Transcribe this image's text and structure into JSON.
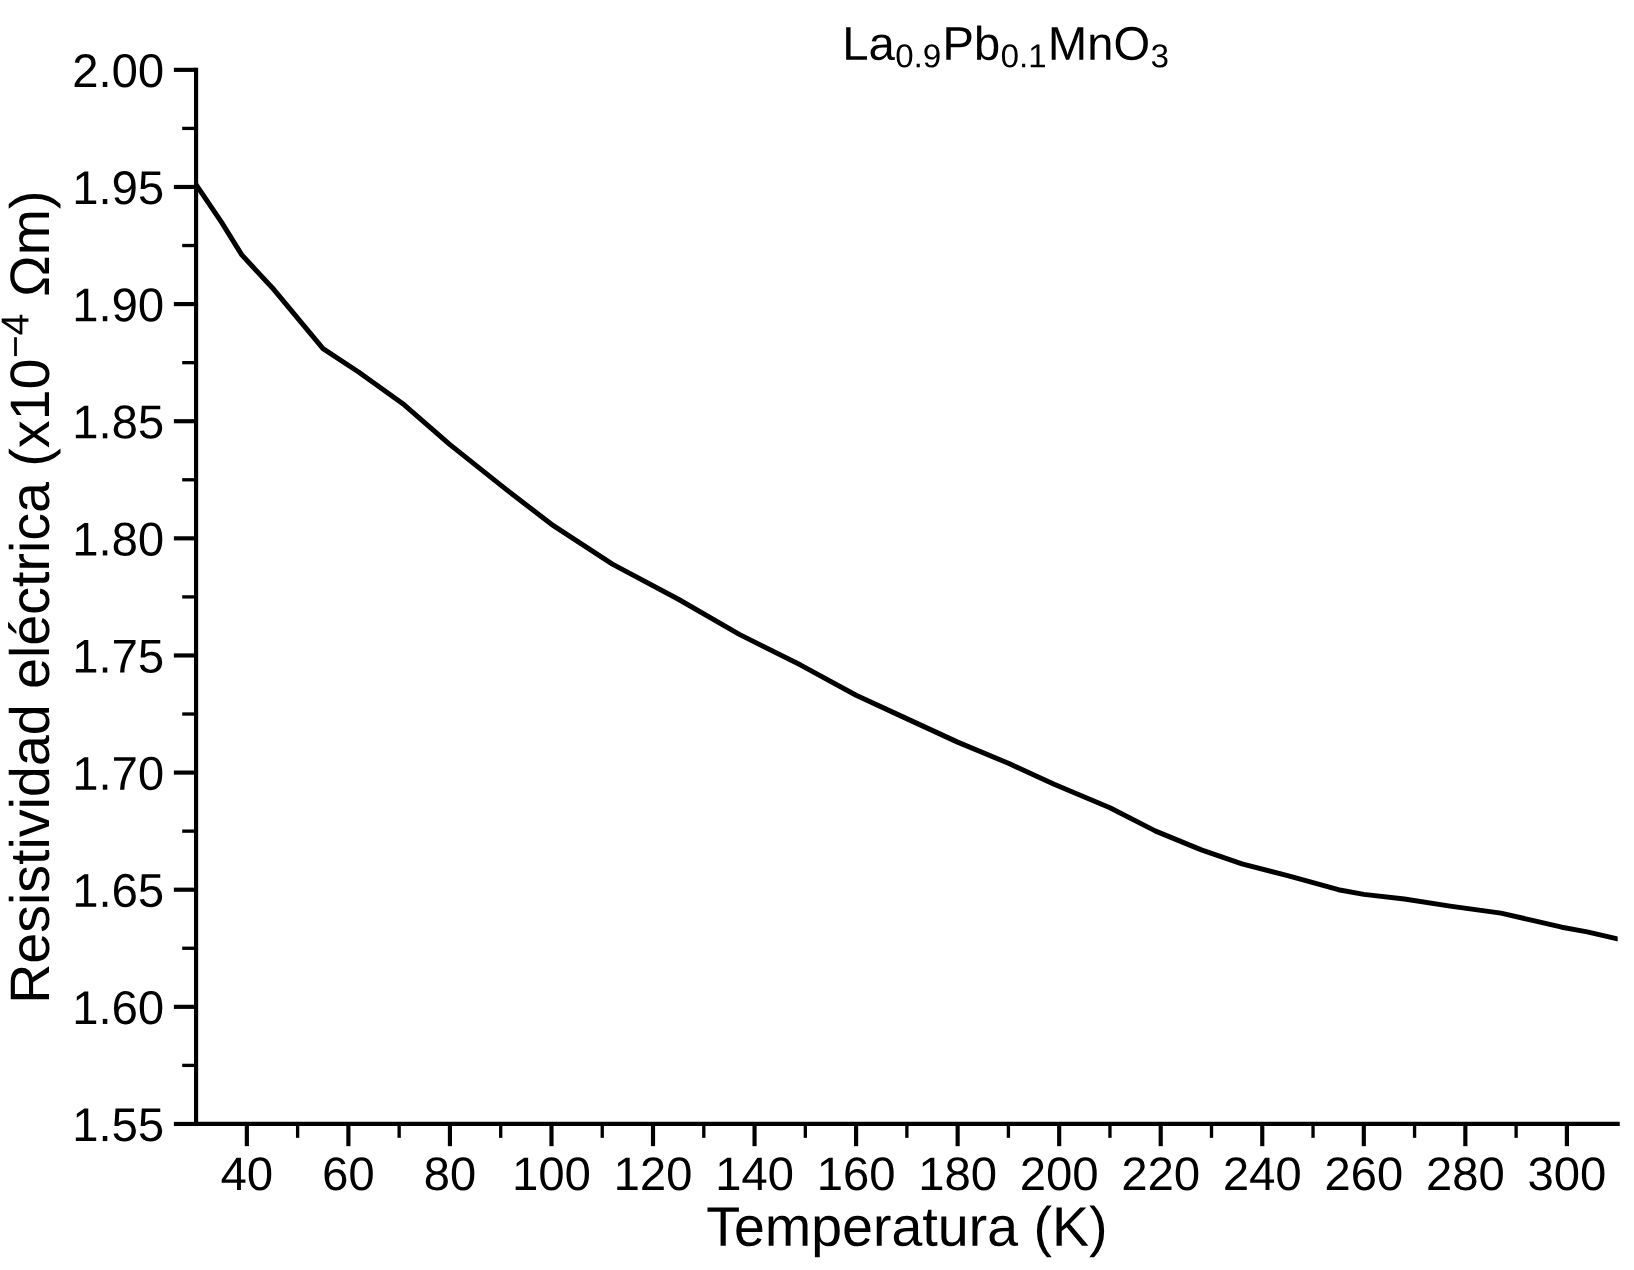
{
  "chart_data": {
    "type": "line",
    "title": "La$_{0.9}$Pb$_{0.1}$MnO$_{3}$",
    "xlabel": "Temperatura (K)",
    "ylabel": "Resistividad eléctrica (x10$^{−4}$ Ωm)",
    "series": [
      {
        "color": "#000000",
        "x": [
          30,
          35,
          39,
          45,
          55,
          62,
          71,
          80,
          91,
          100,
          112,
          125,
          137,
          149,
          160,
          169,
          180,
          190,
          199,
          210,
          219,
          228,
          236,
          245,
          255,
          260,
          268,
          277,
          287,
          293,
          299,
          304,
          310
        ],
        "values": [
          1.951,
          1.935,
          1.921,
          1.907,
          1.881,
          1.871,
          1.857,
          1.84,
          1.821,
          1.806,
          1.789,
          1.774,
          1.759,
          1.746,
          1.733,
          1.724,
          1.713,
          1.704,
          1.695,
          1.685,
          1.675,
          1.667,
          1.661,
          1.656,
          1.65,
          1.648,
          1.646,
          1.643,
          1.64,
          1.637,
          1.634,
          1.632,
          1.629
        ]
      }
    ],
    "xlim": [
      30,
      310
    ],
    "ylim": [
      1.55,
      2.0
    ],
    "xticks": [
      40,
      {
        "value": 50,
        "label": null
      },
      60,
      {
        "value": 70,
        "label": null
      },
      80,
      {
        "value": 90,
        "label": null
      },
      100,
      {
        "value": 110,
        "label": null
      },
      120,
      {
        "value": 130,
        "label": null
      },
      140,
      {
        "value": 150,
        "label": null
      },
      160,
      {
        "value": 170,
        "label": null
      },
      180,
      {
        "value": 190,
        "label": null
      },
      200,
      {
        "value": 210,
        "label": null
      },
      220,
      {
        "value": 230,
        "label": null
      },
      240,
      {
        "value": 250,
        "label": null
      },
      260,
      {
        "value": 270,
        "label": null
      },
      280,
      {
        "value": 290,
        "label": null
      },
      300
    ],
    "yticks": [
      {
        "value": 1.55,
        "label": "1.55"
      },
      {
        "value": 1.575,
        "label": null
      },
      {
        "value": 1.6,
        "label": "1.60"
      },
      {
        "value": 1.625,
        "label": null
      },
      {
        "value": 1.65,
        "label": "1.65"
      },
      {
        "value": 1.675,
        "label": null
      },
      {
        "value": 1.7,
        "label": "1.70"
      },
      {
        "value": 1.725,
        "label": null
      },
      {
        "value": 1.75,
        "label": "1.75"
      },
      {
        "value": 1.775,
        "label": null
      },
      {
        "value": 1.8,
        "label": "1.80"
      },
      {
        "value": 1.825,
        "label": null
      },
      {
        "value": 1.85,
        "label": "1.85"
      },
      {
        "value": 1.875,
        "label": null
      },
      {
        "value": 1.9,
        "label": "1.90"
      },
      {
        "value": 1.925,
        "label": null
      },
      {
        "value": 1.95,
        "label": "1.95"
      },
      {
        "value": 1.975,
        "label": null
      },
      {
        "value": 2.0,
        "label": "2.00"
      }
    ],
    "grid": false,
    "marker": "none",
    "line_style": "solid"
  }
}
